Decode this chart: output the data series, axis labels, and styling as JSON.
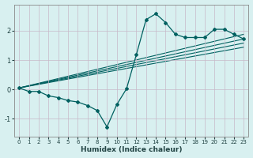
{
  "xlabel": "Humidex (Indice chaleur)",
  "bg_color": "#d8f0f0",
  "plot_bg_color": "#d8f0f0",
  "line_color": "#006060",
  "grid_color": "#c8b8c8",
  "spine_color": "#888888",
  "xlim": [
    -0.5,
    23.5
  ],
  "ylim": [
    -1.6,
    2.9
  ],
  "yticks": [
    -1,
    0,
    1,
    2
  ],
  "xticks": [
    0,
    1,
    2,
    3,
    4,
    5,
    6,
    7,
    8,
    9,
    10,
    11,
    12,
    13,
    14,
    15,
    16,
    17,
    18,
    19,
    20,
    21,
    22,
    23
  ],
  "main_x": [
    0,
    1,
    2,
    3,
    4,
    5,
    6,
    7,
    8,
    9,
    10,
    11,
    12,
    13,
    14,
    15,
    16,
    17,
    18,
    19,
    20,
    21,
    22,
    23
  ],
  "main_y": [
    0.05,
    -0.07,
    -0.07,
    -0.22,
    -0.28,
    -0.38,
    -0.43,
    -0.55,
    -0.72,
    -1.28,
    -0.52,
    0.02,
    1.18,
    2.38,
    2.58,
    2.28,
    1.88,
    1.77,
    1.77,
    1.77,
    2.05,
    2.05,
    1.88,
    1.72
  ],
  "trend_lines": [
    {
      "x": [
        0,
        23
      ],
      "y": [
        0.05,
        1.88
      ]
    },
    {
      "x": [
        0,
        23
      ],
      "y": [
        0.05,
        1.72
      ]
    },
    {
      "x": [
        0,
        23
      ],
      "y": [
        0.05,
        1.58
      ]
    },
    {
      "x": [
        0,
        23
      ],
      "y": [
        0.05,
        1.44
      ]
    }
  ]
}
